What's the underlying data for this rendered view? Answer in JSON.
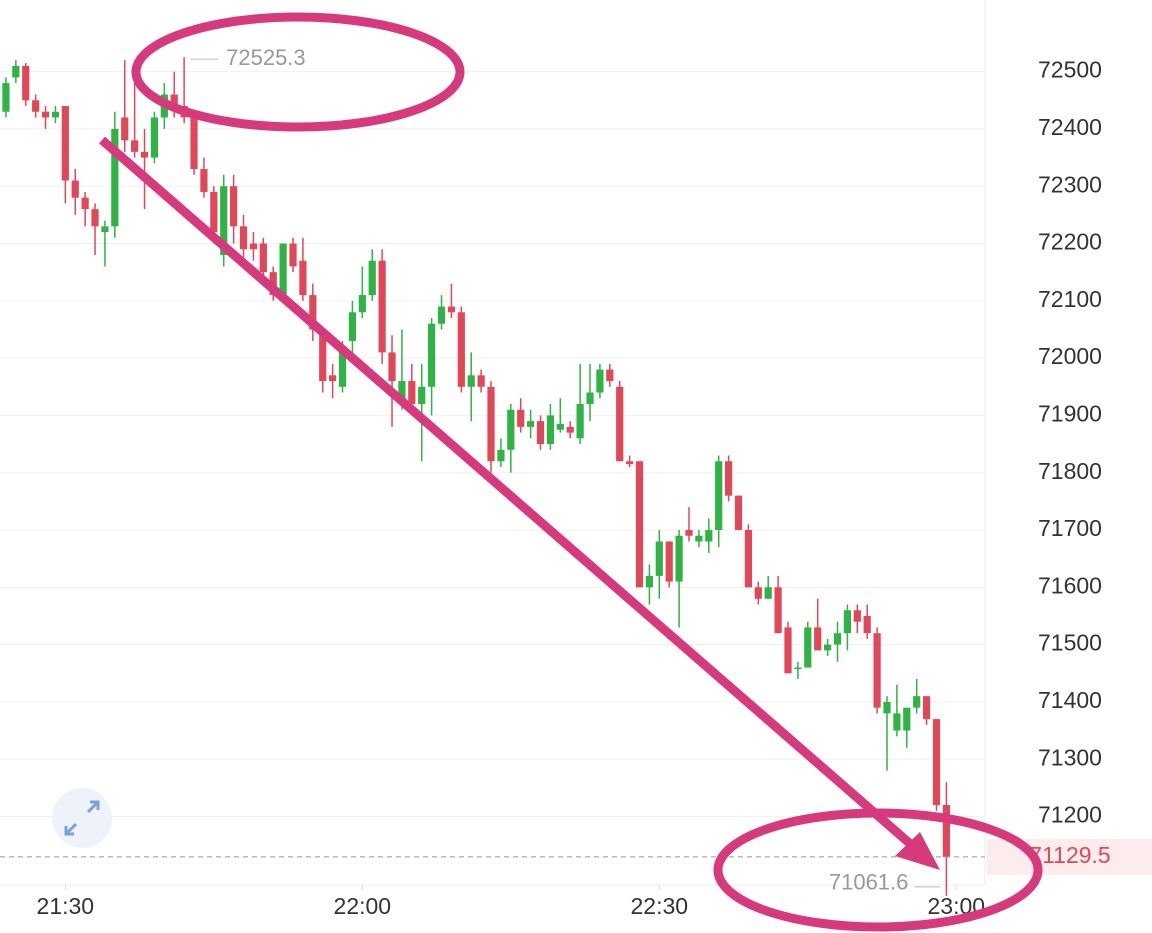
{
  "chart_data": {
    "type": "candlestick",
    "open": [
      72430,
      72490,
      72510,
      72450,
      72430,
      72420,
      72440,
      72310,
      72280,
      72260,
      72220,
      72230,
      72420,
      72380,
      72360,
      72350,
      72420,
      72460,
      72440,
      72420,
      72330,
      72290,
      72180,
      72300,
      72230,
      72200,
      72200,
      72150,
      72110,
      72200,
      72170,
      72110,
      72040,
      71970,
      71950,
      72030,
      72080,
      72110,
      72170,
      72010,
      71930,
      71960,
      71920,
      71950,
      72060,
      72090,
      72080,
      71950,
      71970,
      71950,
      71820,
      71840,
      71910,
      71880,
      71890,
      71850,
      71875,
      71880,
      71860,
      71920,
      71940,
      71980,
      71950,
      71820,
      71820,
      71600,
      71620,
      71680,
      71610,
      71700,
      71680,
      71680,
      71700,
      71820,
      71760,
      71700,
      71600,
      71580,
      71600,
      71530,
      71460,
      71460,
      71530,
      71490,
      71500,
      71520,
      71560,
      71550,
      71520,
      71380,
      71350,
      71350,
      71390,
      71410,
      71370,
      71220
    ],
    "high": [
      72490,
      72520,
      72515,
      72460,
      72440,
      72440,
      72440,
      72330,
      72290,
      72270,
      72240,
      72430,
      72520,
      72480,
      72400,
      72430,
      72480,
      72500,
      72525.3,
      72430,
      72350,
      72300,
      72320,
      72320,
      72250,
      72220,
      72210,
      72160,
      72200,
      72210,
      72210,
      72130,
      72050,
      71990,
      72030,
      72100,
      72160,
      72190,
      72190,
      72040,
      72050,
      71990,
      71990,
      72070,
      72110,
      72130,
      72090,
      72010,
      71980,
      71960,
      71860,
      71920,
      71930,
      71910,
      71900,
      71920,
      71930,
      71890,
      71990,
      71990,
      71990,
      71990,
      71960,
      71830,
      71820,
      71640,
      71700,
      71680,
      71700,
      71740,
      71700,
      71720,
      71830,
      71830,
      71760,
      71710,
      71610,
      71620,
      71620,
      71540,
      71470,
      71540,
      71580,
      71510,
      71540,
      71570,
      71570,
      71570,
      71530,
      71410,
      71430,
      71390,
      71440,
      71410,
      71370,
      71260
    ],
    "low": [
      72420,
      72480,
      72440,
      72420,
      72400,
      72410,
      72270,
      72250,
      72230,
      72180,
      72160,
      72210,
      72360,
      72350,
      72260,
      72340,
      72400,
      72420,
      72410,
      72320,
      72280,
      72200,
      72160,
      72200,
      72170,
      72170,
      72140,
      72100,
      72100,
      72150,
      72100,
      72030,
      71940,
      71930,
      71940,
      72000,
      72070,
      72100,
      71990,
      71880,
      71910,
      71900,
      71820,
      71900,
      72050,
      72070,
      71940,
      71890,
      71940,
      71800,
      71810,
      71800,
      71870,
      71860,
      71840,
      71840,
      71870,
      71860,
      71850,
      71890,
      71930,
      71950,
      71820,
      71810,
      71600,
      71570,
      71580,
      71600,
      71530,
      71680,
      71670,
      71660,
      71670,
      71750,
      71700,
      71600,
      71570,
      71580,
      71520,
      71450,
      71440,
      71460,
      71490,
      71480,
      71470,
      71490,
      71520,
      71510,
      71380,
      71280,
      71340,
      71320,
      71380,
      71360,
      71210,
      71061.6
    ],
    "close": [
      72480,
      72510,
      72450,
      72430,
      72420,
      72430,
      72310,
      72280,
      72260,
      72230,
      72230,
      72400,
      72380,
      72360,
      72350,
      72420,
      72460,
      72440,
      72420,
      72330,
      72290,
      72220,
      72300,
      72230,
      72190,
      72190,
      72150,
      72110,
      72200,
      72160,
      72110,
      72050,
      71960,
      71960,
      72020,
      72080,
      72110,
      72170,
      72010,
      71960,
      71960,
      71920,
      71950,
      72060,
      72090,
      72080,
      71950,
      71970,
      71950,
      71820,
      71840,
      71910,
      71880,
      71890,
      71850,
      71900,
      71885,
      71870,
      71920,
      71940,
      71980,
      71960,
      71820,
      71815,
      71600,
      71620,
      71680,
      71610,
      71690,
      71690,
      71690,
      71700,
      71820,
      71760,
      71700,
      71600,
      71580,
      71600,
      71520,
      71450,
      71460,
      71530,
      71490,
      71500,
      71520,
      71560,
      71540,
      71520,
      71390,
      71400,
      71380,
      71390,
      71410,
      71370,
      71220,
      71129.5
    ],
    "up_color": "#2fb344",
    "down_color": "#e0485a",
    "xlim": [
      -0.6,
      98.9
    ],
    "xticks": [
      {
        "value": 6,
        "label": "21:30"
      },
      {
        "value": 36,
        "label": "22:00"
      },
      {
        "value": 66,
        "label": "22:30"
      },
      {
        "value": 96,
        "label": "23:00"
      }
    ],
    "ylim": [
      71040,
      72625
    ],
    "yticks": [
      71200,
      71300,
      71400,
      71500,
      71600,
      71700,
      71800,
      71900,
      72000,
      72100,
      72200,
      72300,
      72400,
      72500
    ],
    "grid": true
  }
}
